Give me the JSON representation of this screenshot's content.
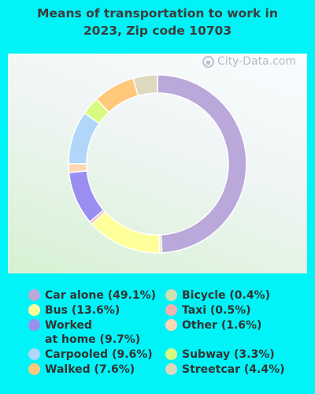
{
  "title_line1": "Means of transportation to work in",
  "title_line2": "2023, Zip code 10703",
  "watermark": "City-Data.com",
  "chart_data": {
    "type": "pie",
    "style": "donut",
    "start": "12 o'clock, clockwise",
    "series": [
      {
        "label": "Car alone (49.1%)",
        "value": 49.1,
        "color": "#bba8db"
      },
      {
        "label": "Bicycle (0.4%)",
        "value": 0.4,
        "color": "#cfe0b2"
      },
      {
        "label": "Bus (13.6%)",
        "value": 13.6,
        "color": "#ffff99"
      },
      {
        "label": "Taxi (0.5%)",
        "value": 0.5,
        "color": "#f2b2b0"
      },
      {
        "label": "Worked at home (9.7%)",
        "label_lines": [
          "Worked",
          "at home (9.7%)"
        ],
        "value": 9.7,
        "color": "#9a8ff0"
      },
      {
        "label": "Other (1.6%)",
        "value": 1.6,
        "color": "#ffd7b5"
      },
      {
        "label": "Carpooled (9.6%)",
        "value": 9.6,
        "color": "#b0d6fa"
      },
      {
        "label": "Subway (3.3%)",
        "value": 3.3,
        "color": "#d9fa80"
      },
      {
        "label": "Walked (7.6%)",
        "value": 7.6,
        "color": "#ffc87a"
      },
      {
        "label": "Streetcar (4.4%)",
        "value": 4.4,
        "color": "#ded8be"
      }
    ],
    "legend_placement": "bottom, two columns"
  }
}
